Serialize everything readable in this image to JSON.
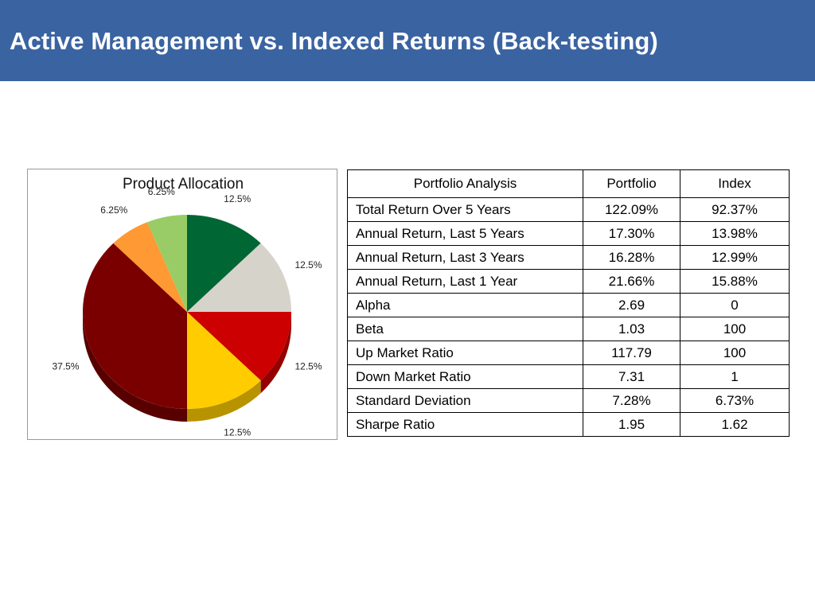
{
  "slide": {
    "title": "Active Management vs. Indexed Returns (Back-testing)"
  },
  "chart_data": {
    "type": "pie",
    "title": "Product Allocation",
    "slices": [
      {
        "label": "12.5%",
        "value": 12.5,
        "color": "#006633"
      },
      {
        "label": "12.5%",
        "value": 12.5,
        "color": "#d6d3cb"
      },
      {
        "label": "12.5%",
        "value": 12.5,
        "color": "#cc0000"
      },
      {
        "label": "12.5%",
        "value": 12.5,
        "color": "#ffcc00"
      },
      {
        "label": "37.5%",
        "value": 37.5,
        "color": "#7a0000"
      },
      {
        "label": "6.25%",
        "value": 6.25,
        "color": "#ff9933"
      },
      {
        "label": "6.25%",
        "value": 6.25,
        "color": "#99cc66"
      }
    ]
  },
  "table": {
    "headers": [
      "Portfolio Analysis",
      "Portfolio",
      "Index"
    ],
    "rows": [
      [
        "Total Return Over 5 Years",
        "122.09%",
        "92.37%"
      ],
      [
        "Annual Return, Last 5 Years",
        "17.30%",
        "13.98%"
      ],
      [
        "Annual Return, Last 3 Years",
        "16.28%",
        "12.99%"
      ],
      [
        "Annual Return, Last 1 Year",
        "21.66%",
        "15.88%"
      ],
      [
        "Alpha",
        "2.69",
        "0"
      ],
      [
        "Beta",
        "1.03",
        "100"
      ],
      [
        "Up Market Ratio",
        "117.79",
        "100"
      ],
      [
        "Down Market Ratio",
        "7.31",
        "1"
      ],
      [
        "Standard Deviation",
        "7.28%",
        "6.73%"
      ],
      [
        "Sharpe Ratio",
        "1.95",
        "1.62"
      ]
    ]
  }
}
